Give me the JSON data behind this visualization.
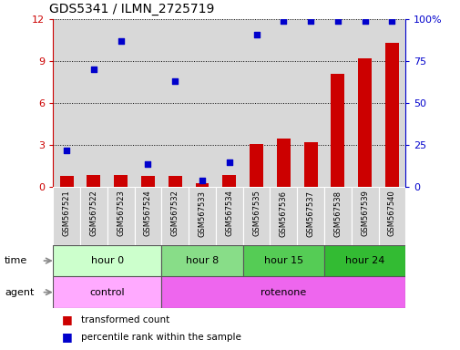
{
  "title": "GDS5341 / ILMN_2725719",
  "samples": [
    "GSM567521",
    "GSM567522",
    "GSM567523",
    "GSM567524",
    "GSM567532",
    "GSM567533",
    "GSM567534",
    "GSM567535",
    "GSM567536",
    "GSM567537",
    "GSM567538",
    "GSM567539",
    "GSM567540"
  ],
  "red_values": [
    0.8,
    0.9,
    0.9,
    0.8,
    0.8,
    0.3,
    0.9,
    3.1,
    3.5,
    3.2,
    8.1,
    9.2,
    10.3
  ],
  "blue_pct": [
    22,
    70,
    87,
    14,
    63,
    4,
    15,
    91,
    99,
    99,
    99,
    99,
    99
  ],
  "ylim_left": [
    0,
    12
  ],
  "ylim_right": [
    0,
    100
  ],
  "yticks_left": [
    0,
    3,
    6,
    9,
    12
  ],
  "yticks_right": [
    0,
    25,
    50,
    75,
    100
  ],
  "time_spans": [
    {
      "label": "hour 0",
      "start": 0,
      "end": 4,
      "color": "#ccffcc"
    },
    {
      "label": "hour 8",
      "start": 4,
      "end": 7,
      "color": "#88dd88"
    },
    {
      "label": "hour 15",
      "start": 7,
      "end": 10,
      "color": "#55cc55"
    },
    {
      "label": "hour 24",
      "start": 10,
      "end": 13,
      "color": "#33bb33"
    }
  ],
  "agent_spans": [
    {
      "label": "control",
      "start": 0,
      "end": 4,
      "color": "#ffaaff"
    },
    {
      "label": "rotenone",
      "start": 4,
      "end": 13,
      "color": "#ee66ee"
    }
  ],
  "red_color": "#cc0000",
  "blue_color": "#0000cc",
  "bar_bg_color": "#d8d8d8",
  "legend_red": "transformed count",
  "legend_blue": "percentile rank within the sample"
}
